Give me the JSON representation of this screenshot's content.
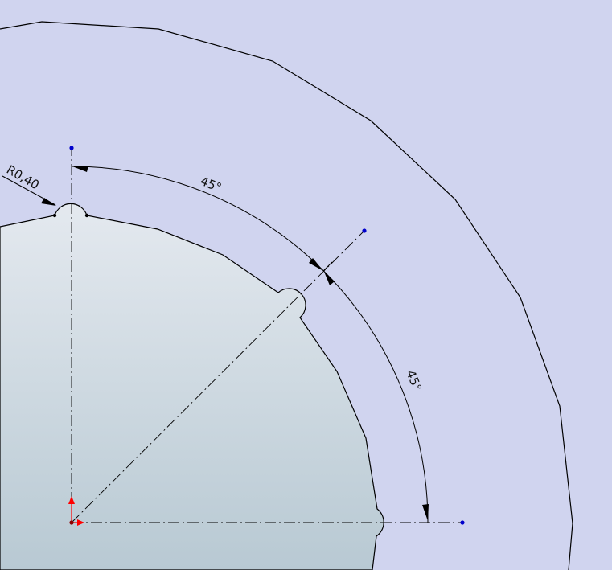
{
  "sketch": {
    "radius_label": "R0,40",
    "angle_top": "45°",
    "angle_bottom": "45°"
  },
  "colors": {
    "background": "#d0d4ef",
    "part_fill_top": "#e3e8ee",
    "part_fill_bottom": "#b8c9d3",
    "line": "#000000",
    "point": "#0000cc",
    "origin_x": "#ff0000",
    "origin_y": "#ff0000"
  },
  "icons": {
    "origin": "origin-triad-icon"
  }
}
